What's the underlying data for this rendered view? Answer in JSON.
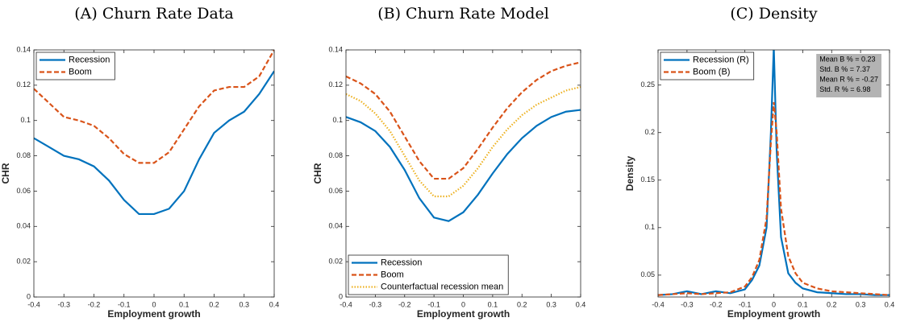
{
  "chart_data": [
    {
      "type": "line",
      "title": "(A) Churn Rate Data",
      "xlabel": "Employment growth",
      "ylabel": "CHR",
      "x": [
        -0.4,
        -0.35,
        -0.3,
        -0.25,
        -0.2,
        -0.15,
        -0.1,
        -0.05,
        0,
        0.05,
        0.1,
        0.15,
        0.2,
        0.25,
        0.3,
        0.35,
        0.4
      ],
      "series": [
        {
          "name": "Recession",
          "color": "#0072bd",
          "style": "solid",
          "values": [
            0.09,
            0.085,
            0.08,
            0.078,
            0.074,
            0.066,
            0.055,
            0.047,
            0.047,
            0.05,
            0.06,
            0.078,
            0.093,
            0.1,
            0.105,
            0.115,
            0.128
          ]
        },
        {
          "name": "Boom",
          "color": "#d95319",
          "style": "dashed",
          "values": [
            0.118,
            0.11,
            0.102,
            0.1,
            0.097,
            0.09,
            0.081,
            0.076,
            0.076,
            0.082,
            0.095,
            0.108,
            0.117,
            0.119,
            0.119,
            0.125,
            0.14
          ]
        }
      ],
      "xlim": [
        -0.4,
        0.4
      ],
      "xticks": [
        -0.4,
        -0.3,
        -0.2,
        -0.1,
        0,
        0.1,
        0.2,
        0.3,
        0.4
      ],
      "ylim": [
        0,
        0.14
      ],
      "yticks": [
        0,
        0.02,
        0.04,
        0.06,
        0.08,
        0.1,
        0.12,
        0.14
      ],
      "legend": "top-left"
    },
    {
      "type": "line",
      "title": "(B) Churn Rate Model",
      "xlabel": "Employment growth",
      "ylabel": "CHR",
      "x": [
        -0.4,
        -0.35,
        -0.3,
        -0.25,
        -0.2,
        -0.15,
        -0.1,
        -0.05,
        0,
        0.05,
        0.1,
        0.15,
        0.2,
        0.25,
        0.3,
        0.35,
        0.4
      ],
      "series": [
        {
          "name": "Recession",
          "color": "#0072bd",
          "style": "solid",
          "values": [
            0.102,
            0.099,
            0.094,
            0.085,
            0.072,
            0.056,
            0.045,
            0.043,
            0.048,
            0.058,
            0.07,
            0.081,
            0.09,
            0.097,
            0.102,
            0.105,
            0.106
          ]
        },
        {
          "name": "Boom",
          "color": "#d95319",
          "style": "dashed",
          "values": [
            0.125,
            0.121,
            0.115,
            0.105,
            0.091,
            0.077,
            0.067,
            0.067,
            0.073,
            0.084,
            0.096,
            0.107,
            0.116,
            0.123,
            0.128,
            0.131,
            0.133
          ]
        },
        {
          "name": "Counterfactual recession mean",
          "color": "#edb120",
          "style": "dotted",
          "values": [
            0.115,
            0.111,
            0.104,
            0.094,
            0.08,
            0.066,
            0.057,
            0.057,
            0.063,
            0.073,
            0.085,
            0.095,
            0.103,
            0.109,
            0.113,
            0.117,
            0.119
          ]
        }
      ],
      "xlim": [
        -0.4,
        0.4
      ],
      "xticks": [
        -0.4,
        -0.3,
        -0.2,
        -0.1,
        0,
        0.1,
        0.2,
        0.3,
        0.4
      ],
      "ylim": [
        0,
        0.14
      ],
      "yticks": [
        0,
        0.02,
        0.04,
        0.06,
        0.08,
        0.1,
        0.12,
        0.14
      ],
      "legend": "bottom-left"
    },
    {
      "type": "line",
      "title": "(C) Density",
      "xlabel": "Employment growth",
      "ylabel": "Density",
      "x": [
        -0.4,
        -0.35,
        -0.3,
        -0.25,
        -0.2,
        -0.15,
        -0.1,
        -0.075,
        -0.05,
        -0.025,
        -0.01,
        0,
        0.01,
        0.025,
        0.05,
        0.075,
        0.1,
        0.15,
        0.2,
        0.25,
        0.3,
        0.35,
        0.4
      ],
      "series": [
        {
          "name": "Recession (R)",
          "color": "#0072bd",
          "style": "solid",
          "values": [
            0.029,
            0.03,
            0.033,
            0.03,
            0.033,
            0.031,
            0.035,
            0.045,
            0.06,
            0.1,
            0.2,
            0.29,
            0.18,
            0.09,
            0.052,
            0.042,
            0.036,
            0.032,
            0.031,
            0.03,
            0.03,
            0.029,
            0.029
          ]
        },
        {
          "name": "Boom (B)",
          "color": "#d95319",
          "style": "dashed",
          "values": [
            0.029,
            0.03,
            0.031,
            0.03,
            0.031,
            0.032,
            0.038,
            0.048,
            0.066,
            0.11,
            0.19,
            0.232,
            0.2,
            0.12,
            0.07,
            0.052,
            0.042,
            0.036,
            0.033,
            0.032,
            0.031,
            0.03,
            0.029
          ]
        }
      ],
      "xlim": [
        -0.4,
        0.4
      ],
      "xticks": [
        -0.4,
        -0.3,
        -0.2,
        -0.1,
        0,
        0.1,
        0.2,
        0.3,
        0.4
      ],
      "ylim": [
        0.027,
        0.287
      ],
      "yticks": [
        0.05,
        0.1,
        0.15,
        0.2,
        0.25
      ],
      "legend": "top-left",
      "annotations": [
        "Mean B % = 0.23",
        "Std. B % = 7.37",
        "Mean R % = -0.27",
        "Std. R % = 6.98"
      ]
    }
  ]
}
